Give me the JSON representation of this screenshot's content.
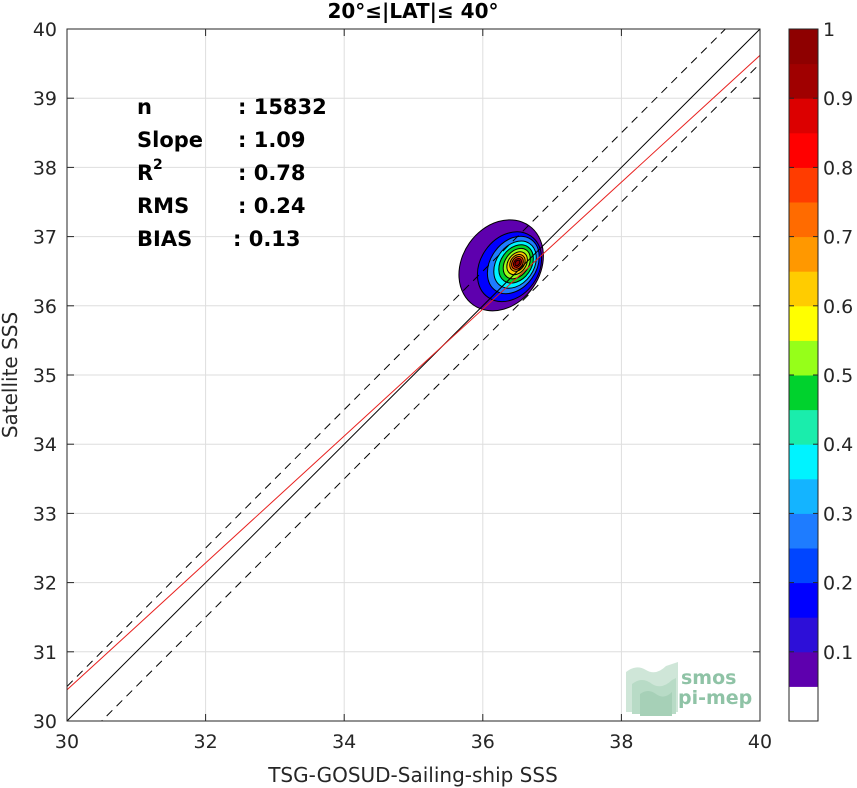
{
  "chart_data": {
    "type": "scatter",
    "title": "20°≤|LAT|≤ 40°",
    "xlabel": "TSG-GOSUD-Sailing-ship SSS",
    "ylabel": "Satellite SSS",
    "xlim": [
      30,
      40
    ],
    "ylim": [
      30,
      40
    ],
    "xticks": [
      "30",
      "32",
      "34",
      "36",
      "38",
      "40"
    ],
    "yticks": [
      "30",
      "31",
      "32",
      "33",
      "34",
      "35",
      "36",
      "37",
      "38",
      "39",
      "40"
    ],
    "grid": true,
    "stats": [
      {
        "label": "n",
        "value": ": 15832"
      },
      {
        "label": "Slope",
        "value": ": 1.09"
      },
      {
        "label": "R",
        "sup": "2",
        "value": ": 0.78"
      },
      {
        "label": "RMS",
        "value": ": 0.24"
      },
      {
        "label": "BIAS",
        "value": ": 0.13"
      }
    ],
    "lines": {
      "identity": {
        "color": "#000000",
        "style": "solid",
        "slope": 1,
        "intercept": 0
      },
      "upper": {
        "color": "#000000",
        "style": "dashed",
        "slope": 1,
        "intercept": 0.5
      },
      "lower": {
        "color": "#000000",
        "style": "dashed",
        "slope": 1,
        "intercept": -0.5
      },
      "regression": {
        "color": "#e8201e",
        "style": "solid",
        "slope": 0.917,
        "intercept": 2.94
      }
    },
    "density_center": {
      "x": 36.5,
      "y": 36.62
    },
    "colorbar": {
      "range": [
        0,
        1
      ],
      "ticks": [
        "0.1",
        "0.2",
        "0.3",
        "0.4",
        "0.5",
        "0.6",
        "0.7",
        "0.8",
        "0.9",
        "1"
      ],
      "colors": [
        "#ffffff",
        "#5e00ae",
        "#2d0fd8",
        "#0000ff",
        "#0045ff",
        "#1e7cff",
        "#14b4ff",
        "#00f3ff",
        "#1aedac",
        "#00d22d",
        "#96ff19",
        "#ffff00",
        "#ffcc00",
        "#ff9800",
        "#ff6b00",
        "#ff3c00",
        "#ff0000",
        "#dc0000",
        "#a00000",
        "#8e0000"
      ]
    }
  },
  "logo": {
    "line1": "smos",
    "line2": "pi-mep"
  }
}
